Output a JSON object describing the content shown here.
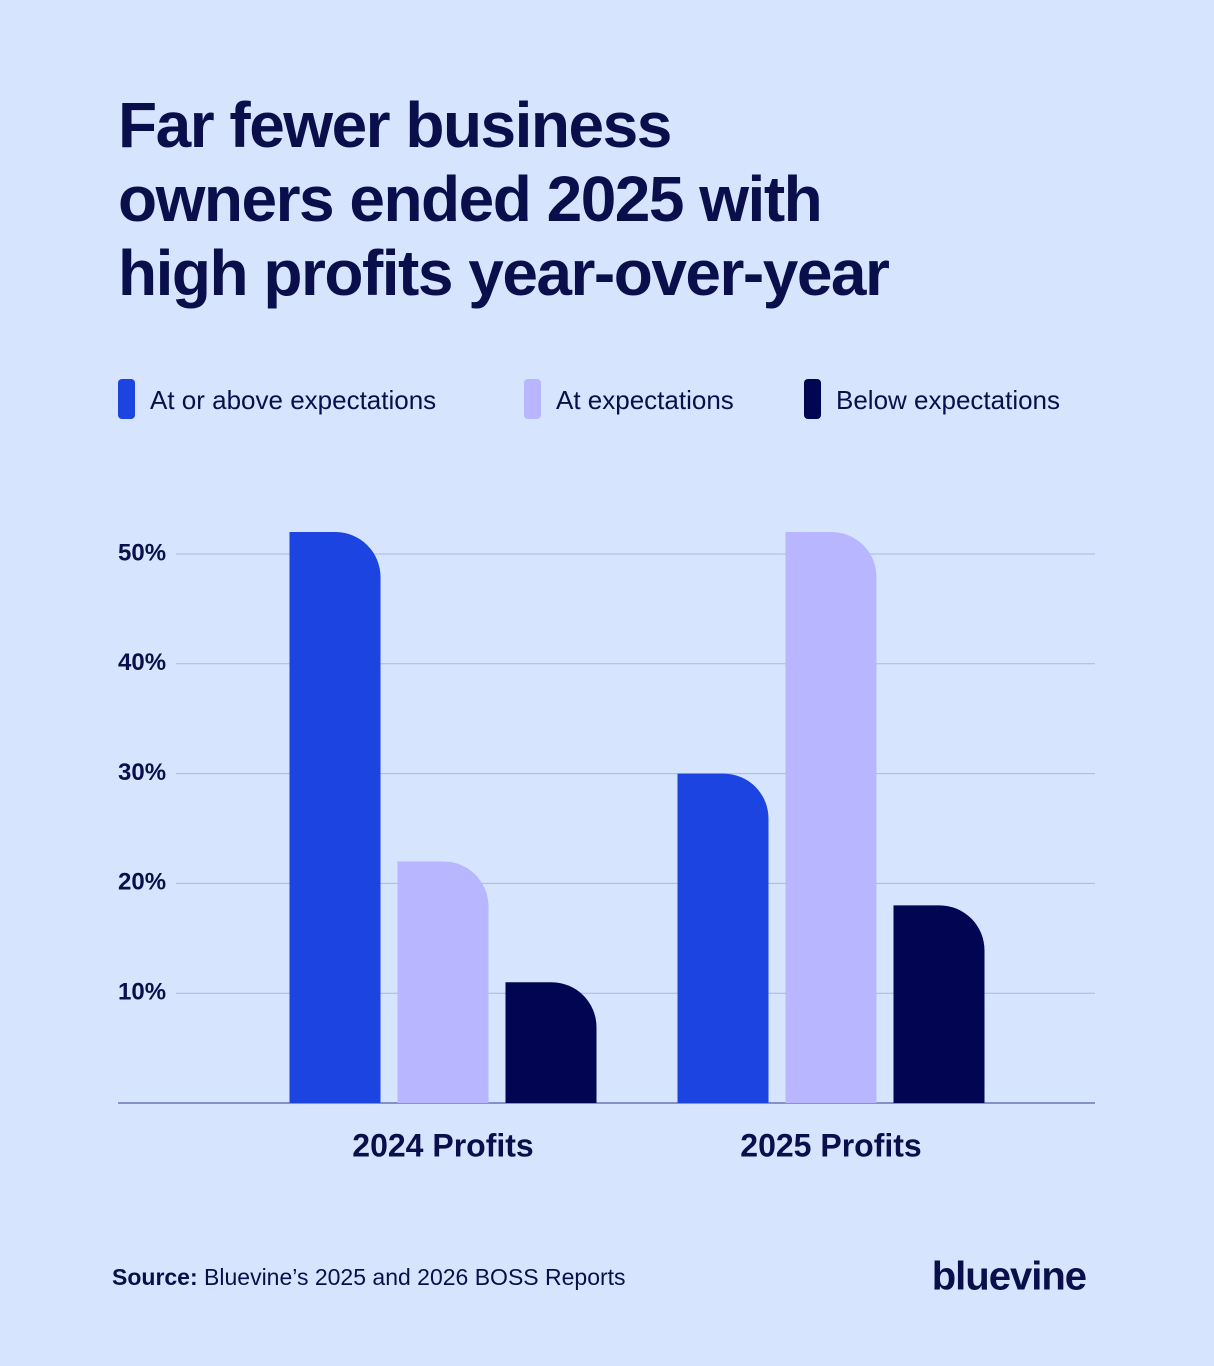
{
  "chart_data": {
    "type": "bar",
    "title": [
      "Far fewer business",
      "owners ended 2025 with",
      "high profits year-over-year"
    ],
    "categories": [
      "2024 Profits",
      "2025 Profits"
    ],
    "series": [
      {
        "name": "At or above expectations",
        "color": "#1b44e0",
        "values": [
          52,
          30
        ]
      },
      {
        "name": "At expectations",
        "color": "#b8b6fe",
        "values": [
          22,
          52
        ]
      },
      {
        "name": "Below expectations",
        "color": "#020652",
        "values": [
          11,
          18
        ]
      }
    ],
    "ylim": [
      0,
      55
    ],
    "yticks": [
      {
        "value": 10,
        "label": "10%"
      },
      {
        "value": 20,
        "label": "20%"
      },
      {
        "value": 30,
        "label": "30%"
      },
      {
        "value": 40,
        "label": "40%"
      },
      {
        "value": 50,
        "label": "50%"
      }
    ],
    "grid": true,
    "legend": "top",
    "source_label": "Source:",
    "source_text": "Bluevine’s 2025 and 2026 BOSS Reports",
    "logo": "bluevine"
  }
}
